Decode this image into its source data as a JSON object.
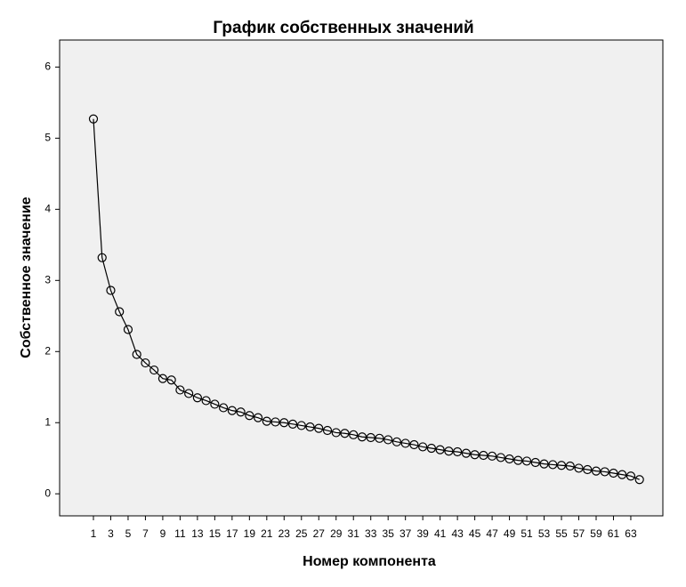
{
  "chart_data": {
    "type": "line",
    "title": "График собственных значений",
    "x_label": "Номер компонента",
    "y_label": "Собственное значение",
    "x": [
      1,
      2,
      3,
      4,
      5,
      6,
      7,
      8,
      9,
      10,
      11,
      12,
      13,
      14,
      15,
      16,
      17,
      18,
      19,
      20,
      21,
      22,
      23,
      24,
      25,
      26,
      27,
      28,
      29,
      30,
      31,
      32,
      33,
      34,
      35,
      36,
      37,
      38,
      39,
      40,
      41,
      42,
      43,
      44,
      45,
      46,
      47,
      48,
      49,
      50,
      51,
      52,
      53,
      54,
      55,
      56,
      57,
      58,
      59,
      60,
      61,
      62,
      63,
      64
    ],
    "values": [
      5.27,
      3.32,
      2.86,
      2.56,
      2.31,
      1.96,
      1.84,
      1.74,
      1.62,
      1.6,
      1.46,
      1.41,
      1.35,
      1.31,
      1.26,
      1.21,
      1.17,
      1.15,
      1.1,
      1.07,
      1.02,
      1.01,
      1.0,
      0.98,
      0.96,
      0.94,
      0.92,
      0.89,
      0.86,
      0.85,
      0.83,
      0.8,
      0.79,
      0.78,
      0.76,
      0.73,
      0.71,
      0.69,
      0.66,
      0.64,
      0.62,
      0.6,
      0.59,
      0.57,
      0.55,
      0.54,
      0.53,
      0.51,
      0.49,
      0.47,
      0.46,
      0.44,
      0.42,
      0.41,
      0.4,
      0.39,
      0.36,
      0.34,
      0.32,
      0.31,
      0.29,
      0.27,
      0.25,
      0.2
    ],
    "color": "#000000",
    "marker": "circle",
    "xlim": [
      -2.9,
      66.7
    ],
    "xticks": [
      1,
      3,
      5,
      7,
      9,
      11,
      13,
      15,
      17,
      19,
      21,
      23,
      25,
      27,
      29,
      31,
      33,
      35,
      37,
      39,
      41,
      43,
      45,
      47,
      49,
      51,
      53,
      55,
      57,
      59,
      61,
      63
    ],
    "ylim": [
      -0.31,
      6.38
    ],
    "yticks": [
      0,
      1,
      2,
      3,
      4,
      5,
      6
    ]
  }
}
